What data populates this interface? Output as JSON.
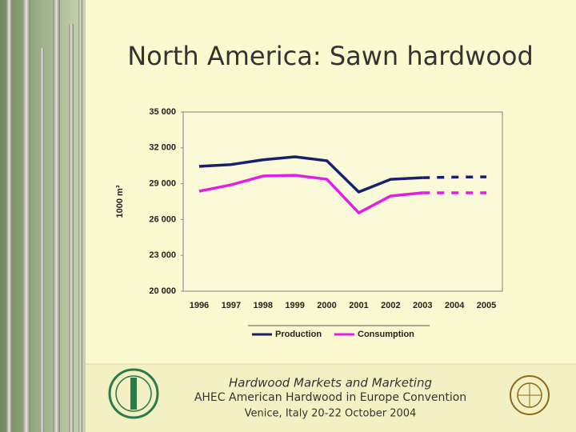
{
  "slide": {
    "footer": [
      "Hardwood Markets and Marketing",
      "AHEC American Hardwood in Europe Convention",
      "Venice, Italy 20-22 October 2004"
    ]
  },
  "chart_data": {
    "type": "line",
    "title": "North America: Sawn hardwood",
    "y_label": "1000 m³",
    "categories": [
      "1996",
      "1997",
      "1998",
      "1999",
      "2000",
      "2001",
      "2002",
      "2003",
      "2004",
      "2005"
    ],
    "series": [
      {
        "name": "Production",
        "color": "#17206b",
        "values": [
          30450,
          30600,
          31000,
          31250,
          30920,
          28300,
          29370,
          29500,
          29550,
          29570
        ],
        "dashed_from": 7
      },
      {
        "name": "Consumption",
        "color": "#e01ee6",
        "values": [
          28370,
          28900,
          29640,
          29700,
          29370,
          26560,
          27970,
          28240,
          28240,
          28240
        ],
        "dashed_from": 7
      }
    ],
    "ylim": [
      20000,
      35000
    ],
    "yticks": [
      {
        "value": 20000,
        "label": "20 000"
      },
      {
        "value": 23000,
        "label": "23 000"
      },
      {
        "value": 26000,
        "label": "26 000"
      },
      {
        "value": 29000,
        "label": "29 000"
      },
      {
        "value": 32000,
        "label": "32 000"
      },
      {
        "value": 35000,
        "label": "35 000"
      }
    ],
    "grid": false,
    "legend": "bottom"
  }
}
